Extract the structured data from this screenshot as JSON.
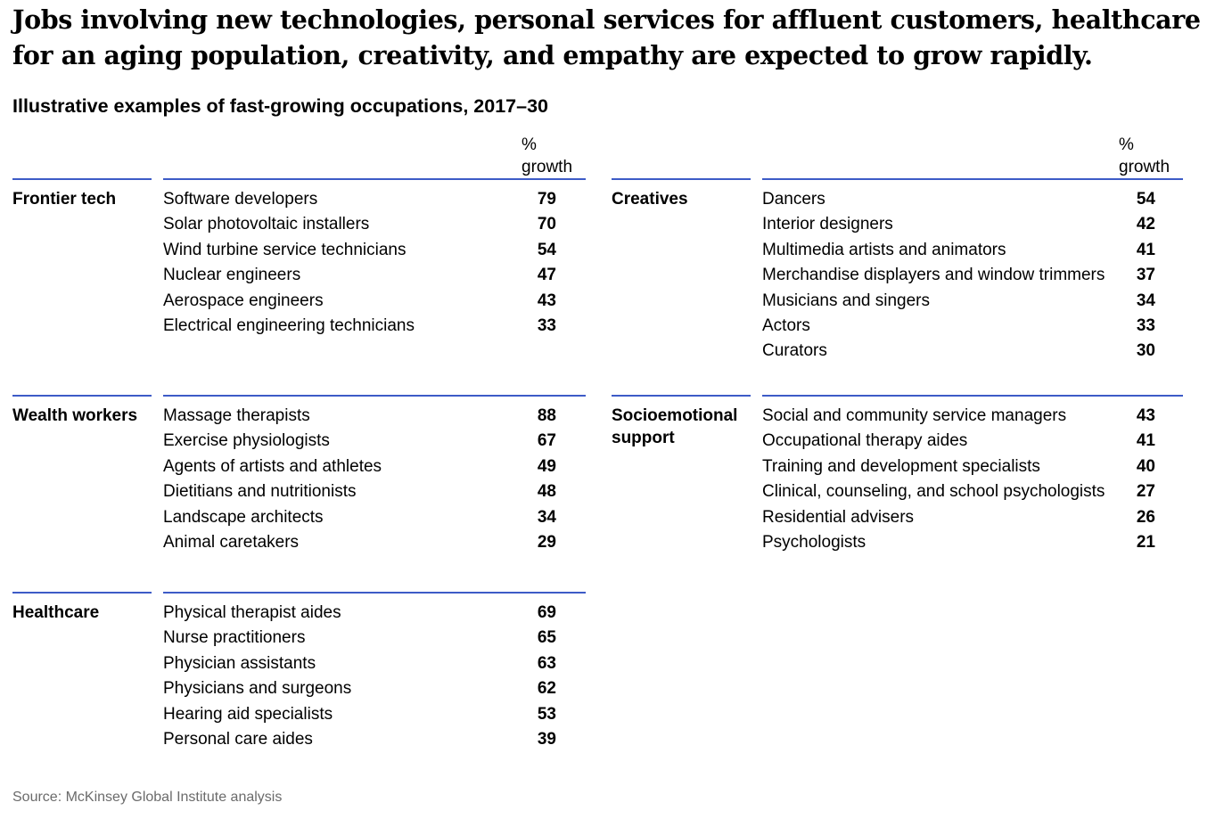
{
  "headline": "Jobs involving new technologies, personal services for affluent customers, healthcare for an aging population, creativity, and empathy are expected to grow rapidly.",
  "subtitle": "Illustrative examples of fast-growing occupations, 2017–30",
  "column_header_pct": "%",
  "column_header_growth": "growth",
  "source": "Source: McKinsey Global Institute analysis",
  "chart_data": {
    "type": "table",
    "title": "Illustrative examples of fast-growing occupations, 2017–30",
    "value_label": "% growth",
    "groups": [
      {
        "category": "Frontier tech",
        "items": [
          {
            "name": "Software developers",
            "value": 79
          },
          {
            "name": "Solar photovoltaic installers",
            "value": 70
          },
          {
            "name": "Wind turbine service technicians",
            "value": 54
          },
          {
            "name": "Nuclear engineers",
            "value": 47
          },
          {
            "name": "Aerospace engineers",
            "value": 43
          },
          {
            "name": "Electrical engineering technicians",
            "value": 33
          }
        ]
      },
      {
        "category": "Wealth workers",
        "items": [
          {
            "name": "Massage therapists",
            "value": 88
          },
          {
            "name": "Exercise physiologists",
            "value": 67
          },
          {
            "name": "Agents of artists and athletes",
            "value": 49
          },
          {
            "name": "Dietitians and nutritionists",
            "value": 48
          },
          {
            "name": "Landscape architects",
            "value": 34
          },
          {
            "name": "Animal caretakers",
            "value": 29
          }
        ]
      },
      {
        "category": "Healthcare",
        "items": [
          {
            "name": "Physical therapist aides",
            "value": 69
          },
          {
            "name": "Nurse practitioners",
            "value": 65
          },
          {
            "name": "Physician assistants",
            "value": 63
          },
          {
            "name": "Physicians and surgeons",
            "value": 62
          },
          {
            "name": "Hearing aid specialists",
            "value": 53
          },
          {
            "name": "Personal care aides",
            "value": 39
          }
        ]
      },
      {
        "category": "Creatives",
        "items": [
          {
            "name": "Dancers",
            "value": 54
          },
          {
            "name": "Interior designers",
            "value": 42
          },
          {
            "name": "Multimedia artists and animators",
            "value": 41
          },
          {
            "name": "Merchandise displayers and window trimmers",
            "value": 37
          },
          {
            "name": "Musicians and singers",
            "value": 34
          },
          {
            "name": "Actors",
            "value": 33
          },
          {
            "name": "Curators",
            "value": 30
          }
        ]
      },
      {
        "category": "Socioemotional support",
        "items": [
          {
            "name": "Social and community service managers",
            "value": 43
          },
          {
            "name": "Occupational therapy aides",
            "value": 41
          },
          {
            "name": "Training and development specialists",
            "value": 40
          },
          {
            "name": "Clinical, counseling, and school psychologists",
            "value": 27
          },
          {
            "name": "Residential advisers",
            "value": 26
          },
          {
            "name": "Psychologists",
            "value": 21
          }
        ]
      }
    ]
  }
}
